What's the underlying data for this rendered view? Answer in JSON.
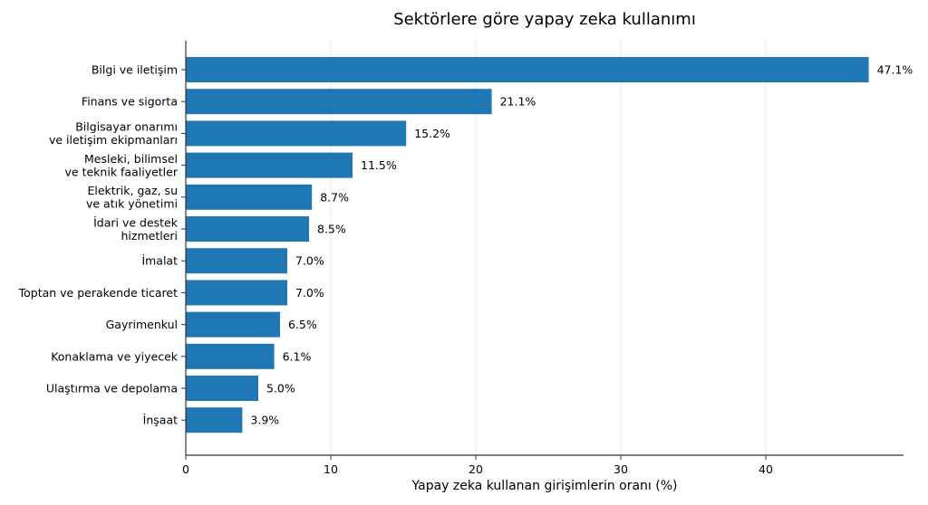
{
  "chart_data": {
    "type": "bar",
    "orientation": "horizontal",
    "title": "Sektörlere göre yapay zeka kullanımı",
    "xlabel": "Yapay zeka kullanan girişimlerin oranı (%)",
    "ylabel": "",
    "xlim": [
      0,
      49.5
    ],
    "xticks": [
      0,
      10,
      20,
      30,
      40
    ],
    "grid": "vertical",
    "bar_color": "#1f77b4",
    "categories": [
      [
        "Bilgi ve iletişim"
      ],
      [
        "Finans ve sigorta"
      ],
      [
        "Bilgisayar onarımı",
        "ve iletişim ekipmanları"
      ],
      [
        "Mesleki, bilimsel",
        "ve teknik faaliyetler"
      ],
      [
        "Elektrik, gaz, su",
        "ve atık yönetimi"
      ],
      [
        "İdari ve destek",
        "hizmetleri"
      ],
      [
        "İmalat"
      ],
      [
        "Toptan ve perakende ticaret"
      ],
      [
        "Gayrimenkul"
      ],
      [
        "Konaklama ve yiyecek"
      ],
      [
        "Ulaştırma ve depolama"
      ],
      [
        "İnşaat"
      ]
    ],
    "values": [
      47.1,
      21.1,
      15.2,
      11.5,
      8.7,
      8.5,
      7.0,
      7.0,
      6.5,
      6.1,
      5.0,
      3.9
    ],
    "value_labels": [
      "47.1%",
      "21.1%",
      "15.2%",
      "11.5%",
      "8.7%",
      "8.5%",
      "7.0%",
      "7.0%",
      "6.5%",
      "6.1%",
      "5.0%",
      "3.9%"
    ]
  }
}
